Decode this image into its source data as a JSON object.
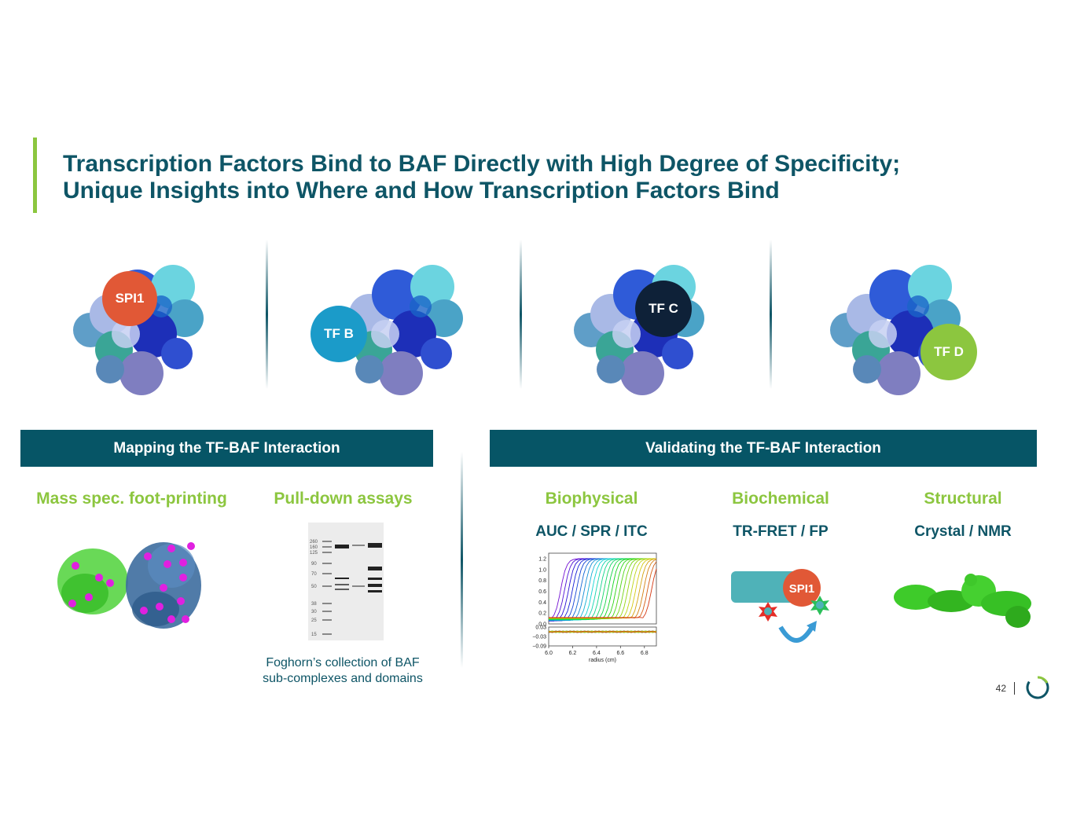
{
  "slide": {
    "title_line1": "Transcription Factors Bind to BAF Directly with High Degree of Specificity;",
    "title_line2": "Unique Insights into Where and How Transcription Factors Bind",
    "page_number": "42"
  },
  "complexes": [
    {
      "label": "SPI1",
      "color": "#e15836"
    },
    {
      "label": "TF B",
      "color": "#1b9bc9"
    },
    {
      "label": "TF C",
      "color": "#0e2138"
    },
    {
      "label": "TF D",
      "color": "#8cc63f"
    }
  ],
  "mapping": {
    "banner": "Mapping the TF-BAF Interaction",
    "mass_spec_heading": "Mass spec. foot-printing",
    "pulldown_heading": "Pull-down assays",
    "caption_line1": "Foghorn’s collection of BAF",
    "caption_line2": "sub-complexes and domains",
    "gel_ladder": [
      "260",
      "160",
      "125",
      "90",
      "70",
      "50",
      "38",
      "30",
      "25",
      "15"
    ]
  },
  "validating": {
    "banner": "Validating the TF-BAF Interaction",
    "biophysical_heading": "Biophysical",
    "biophysical_methods": "AUC / SPR / ITC",
    "biochemical_heading": "Biochemical",
    "biochemical_methods": "TR-FRET / FP",
    "biochemical_label": "SPI1",
    "structural_heading": "Structural",
    "structural_methods": "Crystal / NMR"
  },
  "chart_data": {
    "type": "line",
    "title": "",
    "xlabel": "radius (cm)",
    "ylabel": "",
    "x_ticks": [
      "6.0",
      "6.2",
      "6.4",
      "6.6",
      "6.8"
    ],
    "y_ticks": [
      "1.2",
      "1.0",
      "0.8",
      "0.6",
      "0.4",
      "0.2",
      "0.0"
    ],
    "residual_ticks": [
      "0.03",
      "−0.03",
      "−0.09"
    ],
    "xlim": [
      6.0,
      6.9
    ],
    "ylim": [
      0.0,
      1.3
    ],
    "residual_ylim": [
      -0.09,
      0.03
    ],
    "series_count": 24
  },
  "colors": {
    "accent_green": "#8cc63f",
    "title_teal": "#0e5566",
    "banner_teal": "#065566"
  }
}
